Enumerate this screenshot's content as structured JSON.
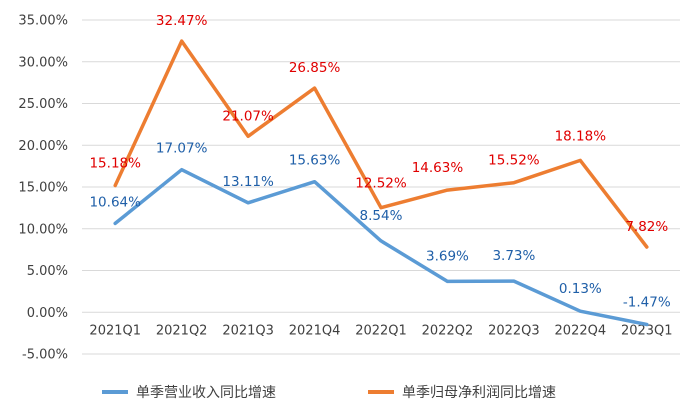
{
  "chart_data": {
    "type": "line",
    "categories": [
      "2021Q1",
      "2021Q2",
      "2021Q3",
      "2021Q4",
      "2022Q1",
      "2022Q2",
      "2022Q3",
      "2022Q4",
      "2023Q1"
    ],
    "series": [
      {
        "name": "单季营业收入同比增速",
        "color": "#5b9bd5",
        "label_color": "#1f5fa8",
        "values": [
          10.64,
          17.07,
          13.11,
          15.63,
          8.54,
          3.69,
          3.73,
          0.13,
          -1.47
        ],
        "labels": [
          "10.64%",
          "17.07%",
          "13.11%",
          "15.63%",
          "8.54%",
          "3.69%",
          "3.73%",
          "0.13%",
          "-1.47%"
        ]
      },
      {
        "name": "单季归母净利润同比增速",
        "color": "#ed7d31",
        "label_color": "#e00000",
        "values": [
          15.18,
          32.47,
          21.07,
          26.85,
          12.52,
          14.63,
          15.52,
          18.18,
          7.82
        ],
        "labels": [
          "15.18%",
          "32.47%",
          "21.07%",
          "26.85%",
          "12.52%",
          "14.63%",
          "15.52%",
          "18.18%",
          "7.82%"
        ]
      }
    ],
    "ylim": [
      -5,
      35
    ],
    "yticks": [
      -5,
      0,
      5,
      10,
      15,
      20,
      25,
      30,
      35
    ],
    "ytick_labels": [
      "-5.00%",
      "0.00%",
      "5.00%",
      "10.00%",
      "15.00%",
      "20.00%",
      "25.00%",
      "30.00%",
      "35.00%"
    ],
    "grid": true,
    "legend_position": "bottom"
  }
}
